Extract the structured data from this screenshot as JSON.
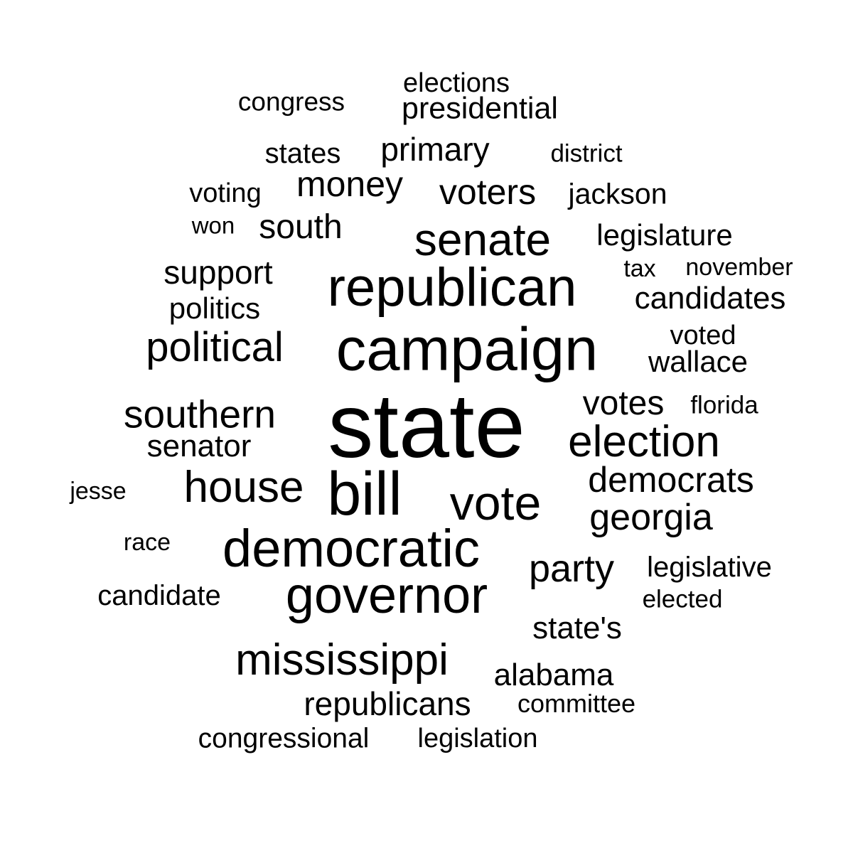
{
  "word_cloud": {
    "text_color": "#000000",
    "background": "#ffffff",
    "words": [
      {
        "text": "state",
        "weight": 1.0
      },
      {
        "text": "campaign",
        "weight": 0.74
      },
      {
        "text": "republican",
        "weight": 0.68
      },
      {
        "text": "democratic",
        "weight": 0.64
      },
      {
        "text": "bill",
        "weight": 0.62
      },
      {
        "text": "governor",
        "weight": 0.6
      },
      {
        "text": "senate",
        "weight": 0.56
      },
      {
        "text": "vote",
        "weight": 0.55
      },
      {
        "text": "election",
        "weight": 0.54
      },
      {
        "text": "political",
        "weight": 0.5
      },
      {
        "text": "mississippi",
        "weight": 0.5
      },
      {
        "text": "house",
        "weight": 0.49
      },
      {
        "text": "southern",
        "weight": 0.46
      },
      {
        "text": "party",
        "weight": 0.46
      },
      {
        "text": "georgia",
        "weight": 0.44
      },
      {
        "text": "money",
        "weight": 0.42
      },
      {
        "text": "democrats",
        "weight": 0.42
      },
      {
        "text": "voters",
        "weight": 0.42
      },
      {
        "text": "south",
        "weight": 0.4
      },
      {
        "text": "republicans",
        "weight": 0.39
      },
      {
        "text": "votes",
        "weight": 0.38
      },
      {
        "text": "support",
        "weight": 0.37
      },
      {
        "text": "primary",
        "weight": 0.36
      },
      {
        "text": "candidates",
        "weight": 0.36
      },
      {
        "text": "alabama",
        "weight": 0.35
      },
      {
        "text": "senator",
        "weight": 0.35
      },
      {
        "text": "presidential",
        "weight": 0.35
      },
      {
        "text": "legislature",
        "weight": 0.34
      },
      {
        "text": "state's",
        "weight": 0.34
      },
      {
        "text": "politics",
        "weight": 0.34
      },
      {
        "text": "jackson",
        "weight": 0.33
      },
      {
        "text": "wallace",
        "weight": 0.33
      },
      {
        "text": "candidate",
        "weight": 0.32
      },
      {
        "text": "legislative",
        "weight": 0.32
      },
      {
        "text": "states",
        "weight": 0.32
      },
      {
        "text": "voting",
        "weight": 0.31
      },
      {
        "text": "congressional",
        "weight": 0.31
      },
      {
        "text": "legislation",
        "weight": 0.31
      },
      {
        "text": "voted",
        "weight": 0.3
      },
      {
        "text": "elections",
        "weight": 0.3
      },
      {
        "text": "congress",
        "weight": 0.3
      },
      {
        "text": "committee",
        "weight": 0.29
      },
      {
        "text": "district",
        "weight": 0.29
      },
      {
        "text": "florida",
        "weight": 0.29
      },
      {
        "text": "elected",
        "weight": 0.29
      },
      {
        "text": "tax",
        "weight": 0.28
      },
      {
        "text": "jesse",
        "weight": 0.28
      },
      {
        "text": "november",
        "weight": 0.28
      },
      {
        "text": "race",
        "weight": 0.28
      },
      {
        "text": "won",
        "weight": 0.28
      }
    ]
  }
}
